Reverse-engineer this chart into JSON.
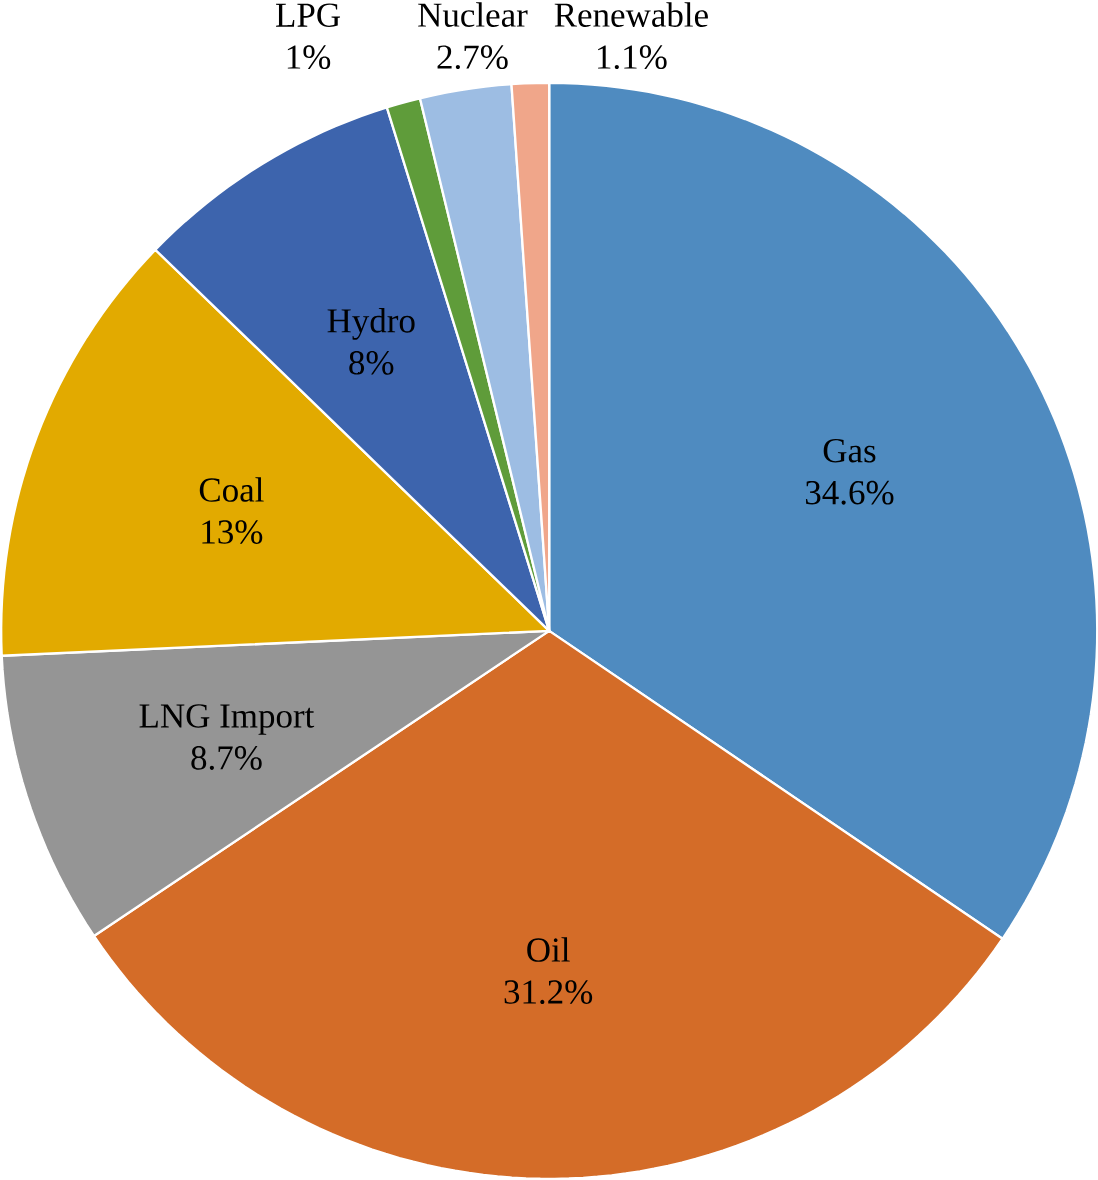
{
  "chart_data": {
    "type": "pie",
    "categories": [
      "Gas",
      "Oil",
      "LNG Import",
      "Coal",
      "Hydro",
      "LPG",
      "Nuclear",
      "Renewable"
    ],
    "values": [
      34.6,
      31.2,
      8.7,
      13,
      8,
      1,
      2.7,
      1.1
    ],
    "value_labels": [
      "34.6%",
      "31.2%",
      "8.7%",
      "13%",
      "8%",
      "1%",
      "2.7%",
      "1.1%"
    ],
    "colors": [
      "#4f8bc0",
      "#d46c28",
      "#959595",
      "#e2aa00",
      "#3d64ad",
      "#5f9c3a",
      "#9dbde3",
      "#f0a68a"
    ]
  }
}
